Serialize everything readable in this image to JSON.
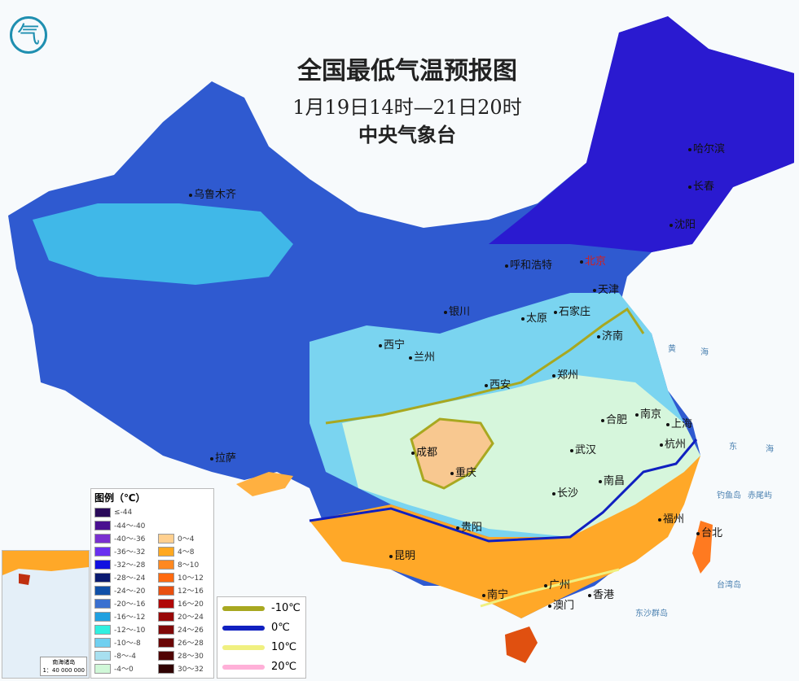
{
  "title": "全国最低气温预报图",
  "period": "1月19日14时—21日20时",
  "issuer": "中央气象台",
  "logo_text": "气",
  "cities": [
    {
      "name": "乌鲁木齐"
    },
    {
      "name": "哈尔滨"
    },
    {
      "name": "长春"
    },
    {
      "name": "沈阳"
    },
    {
      "name": "呼和浩特"
    },
    {
      "name": "北京",
      "capital": true
    },
    {
      "name": "天津"
    },
    {
      "name": "银川"
    },
    {
      "name": "太原"
    },
    {
      "name": "石家庄"
    },
    {
      "name": "济南"
    },
    {
      "name": "西宁"
    },
    {
      "name": "兰州"
    },
    {
      "name": "西安"
    },
    {
      "name": "郑州"
    },
    {
      "name": "合肥"
    },
    {
      "name": "南京"
    },
    {
      "name": "上海"
    },
    {
      "name": "成都"
    },
    {
      "name": "重庆"
    },
    {
      "name": "武汉"
    },
    {
      "name": "杭州"
    },
    {
      "name": "拉萨"
    },
    {
      "name": "长沙"
    },
    {
      "name": "南昌"
    },
    {
      "name": "贵阳"
    },
    {
      "name": "福州"
    },
    {
      "name": "台北"
    },
    {
      "name": "昆明"
    },
    {
      "name": "南宁"
    },
    {
      "name": "广州"
    },
    {
      "name": "香港"
    },
    {
      "name": "澳门"
    }
  ],
  "seas": [
    "黄",
    "海",
    "东",
    "海",
    "钓鱼岛",
    "赤尾屿",
    "台湾岛",
    "东沙群岛"
  ],
  "legend": {
    "title": "图例（℃）",
    "cold": [
      {
        "label": "≤-44",
        "color": "#2a0a5a"
      },
      {
        "label": "-44～-40",
        "color": "#4a1090"
      },
      {
        "label": "-40～-36",
        "color": "#7a30d0"
      },
      {
        "label": "-36～-32",
        "color": "#6a30f0"
      },
      {
        "label": "-32～-28",
        "color": "#1010e0"
      },
      {
        "label": "-28～-24",
        "color": "#0a1a70"
      },
      {
        "label": "-24～-20",
        "color": "#1050a8"
      },
      {
        "label": "-20～-16",
        "color": "#3a70d0"
      },
      {
        "label": "-16～-12",
        "color": "#20a0e0"
      },
      {
        "label": "-12～-10",
        "color": "#30f0e0"
      },
      {
        "label": "-10～-8",
        "color": "#70d0f0"
      },
      {
        "label": "-8～-4",
        "color": "#a8e0f0"
      },
      {
        "label": "-4～0",
        "color": "#d0f8d8"
      }
    ],
    "warm": [
      {
        "label": "0～4",
        "color": "#ffd090"
      },
      {
        "label": "4～8",
        "color": "#ffa820"
      },
      {
        "label": "8～10",
        "color": "#ff8820"
      },
      {
        "label": "10～12",
        "color": "#ff6a10"
      },
      {
        "label": "12～16",
        "color": "#e85010"
      },
      {
        "label": "16～20",
        "color": "#b00808"
      },
      {
        "label": "20～24",
        "color": "#980808"
      },
      {
        "label": "24～26",
        "color": "#800808"
      },
      {
        "label": "26～28",
        "color": "#6a0505"
      },
      {
        "label": "28～30",
        "color": "#500404"
      },
      {
        "label": "30～32",
        "color": "#300303"
      }
    ],
    "isotherms": [
      {
        "label": "-10℃",
        "color": "#a8a820"
      },
      {
        "label": "0℃",
        "color": "#1020c0"
      },
      {
        "label": "10℃",
        "color": "#f0f080"
      },
      {
        "label": "20℃",
        "color": "#ffb0d8"
      }
    ]
  },
  "inset": {
    "name": "南海诸岛",
    "scale": "1：40 000 000"
  }
}
